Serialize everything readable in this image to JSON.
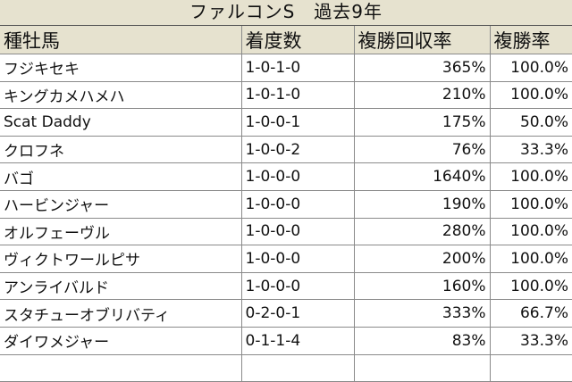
{
  "title": "ファルコンS　過去9年",
  "headers": [
    "種牡馬",
    "着度数",
    "複勝回収率",
    "複勝率"
  ],
  "rows": [
    [
      "フジキセキ",
      "1-0-1-0",
      "365%",
      "100.0%"
    ],
    [
      "キングカメハメハ",
      "1-0-1-0",
      "210%",
      "100.0%"
    ],
    [
      "Scat Daddy",
      "1-0-0-1",
      "175%",
      "50.0%"
    ],
    [
      "クロフネ",
      "1-0-0-2",
      "76%",
      "33.3%"
    ],
    [
      "バゴ",
      "1-0-0-0",
      "1640%",
      "100.0%"
    ],
    [
      "ハービンジャー",
      "1-0-0-0",
      "190%",
      "100.0%"
    ],
    [
      "オルフェーヴル",
      "1-0-0-0",
      "280%",
      "100.0%"
    ],
    [
      "ヴィクトワールピサ",
      "1-0-0-0",
      "200%",
      "100.0%"
    ],
    [
      "アンライバルド",
      "1-0-0-0",
      "160%",
      "100.0%"
    ],
    [
      "スタチューオブリバティ",
      "0-2-0-1",
      "333%",
      "66.7%"
    ],
    [
      "ダイワメジャー",
      "0-1-1-4",
      "83%",
      "33.3%"
    ]
  ]
}
